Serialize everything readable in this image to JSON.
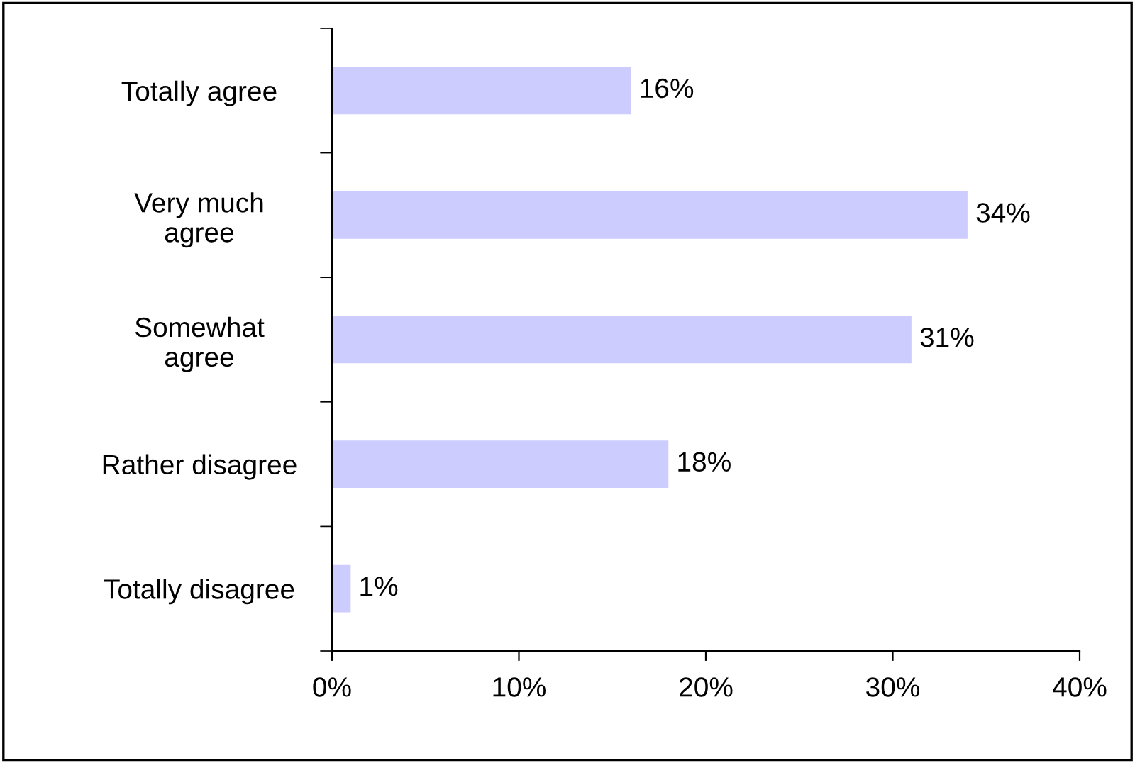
{
  "chart_data": {
    "type": "bar",
    "orientation": "horizontal",
    "categories": [
      "Totally agree",
      "Very much\nagree",
      "Somewhat\nagree",
      "Rather disagree",
      "Totally disagree"
    ],
    "values": [
      16,
      34,
      31,
      18,
      1
    ],
    "value_labels": [
      "16%",
      "34%",
      "31%",
      "18%",
      "1%"
    ],
    "color": "#ccccff",
    "xlim": [
      0,
      40
    ],
    "xticks": [
      {
        "value": 0,
        "label": "0%"
      },
      {
        "value": 10,
        "label": "10%"
      },
      {
        "value": 20,
        "label": "20%"
      },
      {
        "value": 30,
        "label": "30%"
      },
      {
        "value": 40,
        "label": "40%"
      }
    ],
    "grid": false,
    "legend": false
  }
}
